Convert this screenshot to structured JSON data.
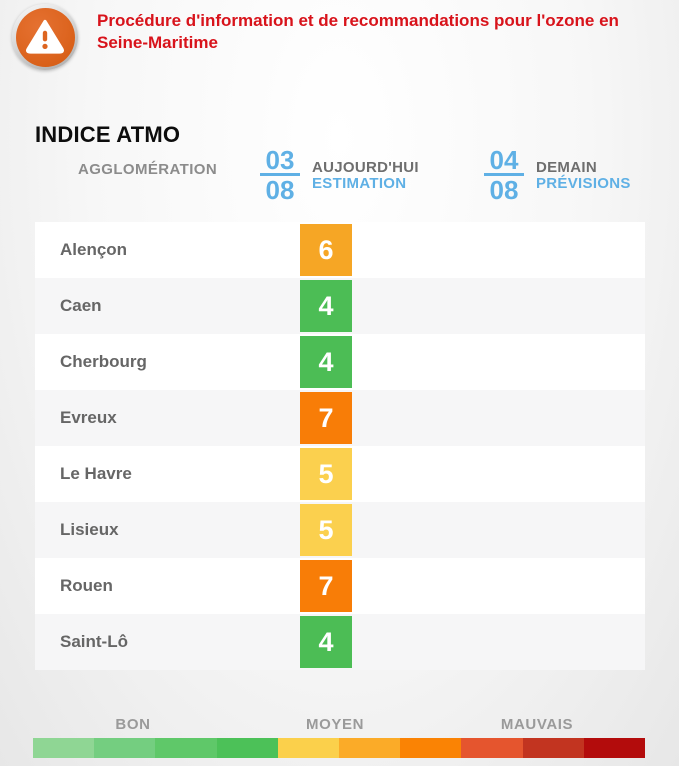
{
  "alert": {
    "icon": "warning-icon",
    "message": "Procédure d'information et de recommandations pour l'ozone en Seine-Maritime",
    "text_color": "#d8131b",
    "icon_color": "#dd6520"
  },
  "indice": {
    "title": "INDICE ATMO",
    "columns": {
      "agglomeration": "AGGLOMÉRATION",
      "today": {
        "day": "03",
        "month": "08",
        "label": "AUJOURD'HUI",
        "sublabel": "ESTIMATION"
      },
      "tomorrow": {
        "day": "04",
        "month": "08",
        "label": "DEMAIN",
        "sublabel": "PRÉVISIONS"
      }
    },
    "accent_blue": "#5fb0e5",
    "rows": [
      {
        "city": "Alençon",
        "today_value": "6",
        "today_color": "#f6a625",
        "tomorrow_value": ""
      },
      {
        "city": "Caen",
        "today_value": "4",
        "today_color": "#4cbd55",
        "tomorrow_value": ""
      },
      {
        "city": "Cherbourg",
        "today_value": "4",
        "today_color": "#4cbd55",
        "tomorrow_value": ""
      },
      {
        "city": "Evreux",
        "today_value": "7",
        "today_color": "#f87d07",
        "tomorrow_value": ""
      },
      {
        "city": "Le Havre",
        "today_value": "5",
        "today_color": "#fbd04e",
        "tomorrow_value": ""
      },
      {
        "city": "Lisieux",
        "today_value": "5",
        "today_color": "#fbd04e",
        "tomorrow_value": ""
      },
      {
        "city": "Rouen",
        "today_value": "7",
        "today_color": "#f87d07",
        "tomorrow_value": ""
      },
      {
        "city": "Saint-Lô",
        "today_value": "4",
        "today_color": "#4cbd55",
        "tomorrow_value": ""
      }
    ]
  },
  "legend": {
    "labels": [
      "BON",
      "MOYEN",
      "MAUVAIS"
    ],
    "scale_colors": [
      "#8fd694",
      "#74ce80",
      "#5fc869",
      "#4cc158",
      "#fbd04b",
      "#fbab28",
      "#fa8304",
      "#e5552e",
      "#c23420",
      "#b30c0c"
    ]
  }
}
